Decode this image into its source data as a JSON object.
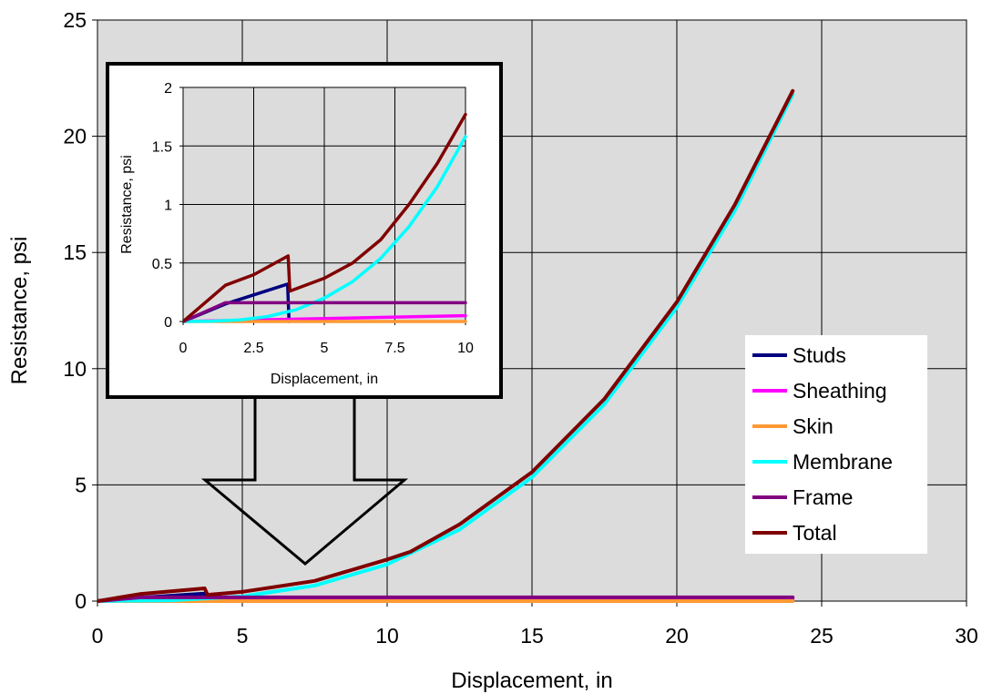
{
  "chart_data": [
    {
      "type": "line",
      "title": "",
      "xlabel": "Displacement, in",
      "ylabel": "Resistance, psi",
      "xlim": [
        0,
        30
      ],
      "ylim": [
        0,
        25
      ],
      "xticks": [
        0,
        5,
        10,
        15,
        20,
        25,
        30
      ],
      "yticks": [
        0,
        5,
        10,
        15,
        20,
        25
      ],
      "grid": true,
      "plot_background": "#DCDCDC",
      "legend_position": "bottom-right",
      "series": [
        {
          "name": "Studs",
          "color": "#000080",
          "x": [
            0,
            1.5,
            3.7,
            3.75
          ],
          "y": [
            0,
            0.15,
            0.32,
            0
          ]
        },
        {
          "name": "Sheathing",
          "color": "#FF00FF",
          "x": [
            0,
            10,
            24
          ],
          "y": [
            0,
            0.04,
            0.09
          ]
        },
        {
          "name": "Skin",
          "color": "#FF9933",
          "x": [
            0,
            24
          ],
          "y": [
            0,
            0
          ]
        },
        {
          "name": "Membrane",
          "color": "#00FFFF",
          "x": [
            0,
            2.5,
            5,
            7.5,
            10,
            12.5,
            15,
            17.5,
            20,
            22,
            24
          ],
          "y": [
            0,
            0.03,
            0.2,
            0.67,
            1.58,
            3.08,
            5.33,
            8.47,
            12.64,
            16.8,
            21.8
          ]
        },
        {
          "name": "Frame",
          "color": "#800080",
          "x": [
            0,
            1.5,
            24
          ],
          "y": [
            0,
            0.16,
            0.16
          ]
        },
        {
          "name": "Total",
          "color": "#800000",
          "x": [
            0,
            1.5,
            3.7,
            3.8,
            5,
            7.5,
            10,
            10.7,
            10.8,
            12.5,
            15,
            17.5,
            20,
            22,
            24
          ],
          "y": [
            0,
            0.31,
            0.55,
            0.27,
            0.4,
            0.87,
            1.79,
            2.08,
            2.12,
            3.3,
            5.55,
            8.7,
            12.87,
            17.05,
            21.95
          ]
        }
      ]
    },
    {
      "type": "line",
      "title": "",
      "xlabel": "Displacement, in",
      "ylabel": "Resistance, psi",
      "xlim": [
        0,
        10
      ],
      "ylim": [
        0,
        2
      ],
      "xticks": [
        "0",
        "2.5",
        "5",
        "7.5",
        "10"
      ],
      "yticks": [
        "0",
        "0.5",
        "1",
        "1.5",
        "2"
      ],
      "grid": true,
      "plot_background": "#DCDCDC",
      "series": [
        {
          "name": "Studs",
          "color": "#000080",
          "x": [
            0,
            1.5,
            3.7,
            3.75
          ],
          "y": [
            0,
            0.15,
            0.32,
            0
          ]
        },
        {
          "name": "Sheathing",
          "color": "#FF00FF",
          "x": [
            0,
            10
          ],
          "y": [
            0,
            0.05
          ]
        },
        {
          "name": "Skin",
          "color": "#FF9933",
          "x": [
            0,
            10
          ],
          "y": [
            0,
            0
          ]
        },
        {
          "name": "Membrane",
          "color": "#00FFFF",
          "x": [
            0,
            1,
            2,
            3,
            4,
            5,
            6,
            7,
            8,
            9,
            10
          ],
          "y": [
            0,
            0.002,
            0.013,
            0.043,
            0.1,
            0.2,
            0.34,
            0.54,
            0.81,
            1.15,
            1.58
          ]
        },
        {
          "name": "Frame",
          "color": "#800080",
          "x": [
            0,
            1.5,
            10
          ],
          "y": [
            0,
            0.16,
            0.16
          ]
        },
        {
          "name": "Total",
          "color": "#800000",
          "x": [
            0,
            1.5,
            2.5,
            3.72,
            3.78,
            5,
            6,
            7,
            8,
            9,
            10
          ],
          "y": [
            0,
            0.31,
            0.4,
            0.56,
            0.26,
            0.37,
            0.5,
            0.7,
            1.0,
            1.35,
            1.77
          ]
        }
      ]
    }
  ]
}
